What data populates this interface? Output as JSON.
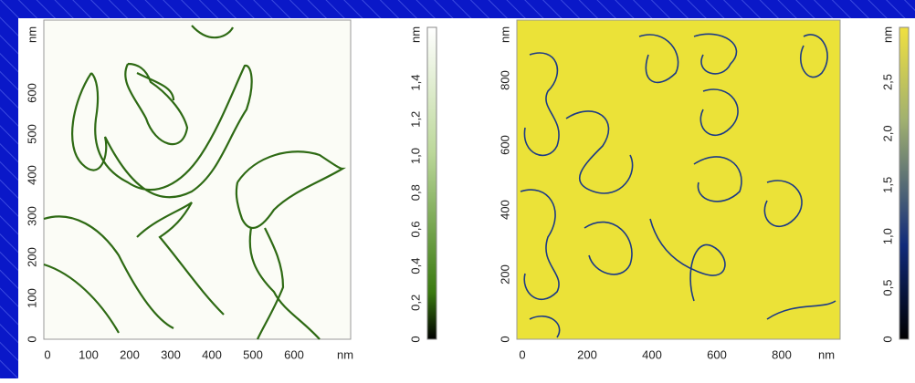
{
  "panels": [
    {
      "x_unit": "nm",
      "y_unit": "nm",
      "xticks": [
        0,
        100,
        200,
        300,
        400,
        500,
        600
      ],
      "yticks": [
        0,
        100,
        200,
        300,
        400,
        500,
        600
      ],
      "colorbar": {
        "unit": "nm",
        "ticks": [
          0,
          {
            "value": 0.2,
            "label": "0,2"
          },
          {
            "value": 0.4,
            "label": "0,4"
          },
          {
            "value": 0.6,
            "label": "0,6"
          },
          {
            "value": 0.8,
            "label": "0,8"
          },
          {
            "value": 1.0,
            "label": "1,0"
          },
          {
            "value": 1.2,
            "label": "1,2"
          },
          {
            "value": 1.4,
            "label": "1,4"
          }
        ]
      }
    },
    {
      "x_unit": "nm",
      "y_unit": "nm",
      "xticks": [
        0,
        200,
        400,
        600,
        800
      ],
      "yticks": [
        0,
        200,
        400,
        600,
        800
      ],
      "colorbar": {
        "unit": "nm",
        "ticks": [
          0,
          {
            "value": 0.5,
            "label": "0,5"
          },
          {
            "value": 1.0,
            "label": "1,0"
          },
          {
            "value": 1.5,
            "label": "1,5"
          },
          {
            "value": 2.0,
            "label": "2,0"
          },
          {
            "value": 2.5,
            "label": "2,5"
          }
        ]
      }
    }
  ]
}
